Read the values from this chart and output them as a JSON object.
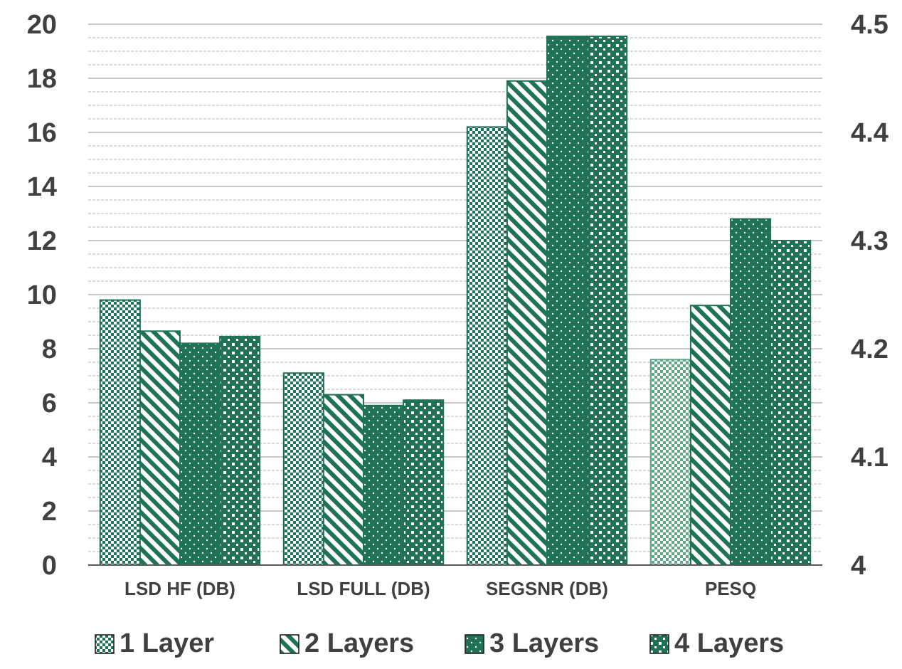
{
  "chart_data": {
    "type": "bar",
    "categories": [
      "LSD HF (DB)",
      "LSD FULL (DB)",
      "SEGSNR (DB)",
      "PESQ"
    ],
    "series": [
      {
        "name": "1 Layer",
        "color": "#1f7254",
        "values": [
          9.8,
          7.1,
          16.2,
          null
        ]
      },
      {
        "name": "2 Layers",
        "color": "#1f7254",
        "values": [
          8.65,
          6.3,
          17.9,
          null
        ]
      },
      {
        "name": "3 Layers",
        "color": "#1f7254",
        "values": [
          8.2,
          5.9,
          19.55,
          null
        ]
      },
      {
        "name": "4 Layers",
        "color": "#1f7254",
        "values": [
          8.45,
          6.1,
          19.55,
          null
        ]
      },
      {
        "color": "#5fa587",
        "axis": "y2",
        "values": [
          null,
          null,
          null,
          4.19
        ]
      },
      {
        "color": "#1f7254",
        "axis": "y2",
        "values": [
          null,
          null,
          null,
          4.24
        ]
      },
      {
        "color": "#1f7254",
        "axis": "y2",
        "values": [
          null,
          null,
          null,
          4.32
        ]
      },
      {
        "color": "#1f7254",
        "axis": "y2",
        "values": [
          null,
          null,
          null,
          4.3
        ]
      }
    ],
    "ylim": [
      0,
      20
    ],
    "yticks": [
      0,
      2,
      4,
      6,
      8,
      10,
      12,
      14,
      16,
      18,
      20
    ],
    "y2lim": [
      4,
      4.5
    ],
    "y2ticks": [
      4,
      4.1,
      4.2,
      4.3,
      4.4,
      4.5
    ],
    "grid": "y",
    "legend": "bottom"
  }
}
